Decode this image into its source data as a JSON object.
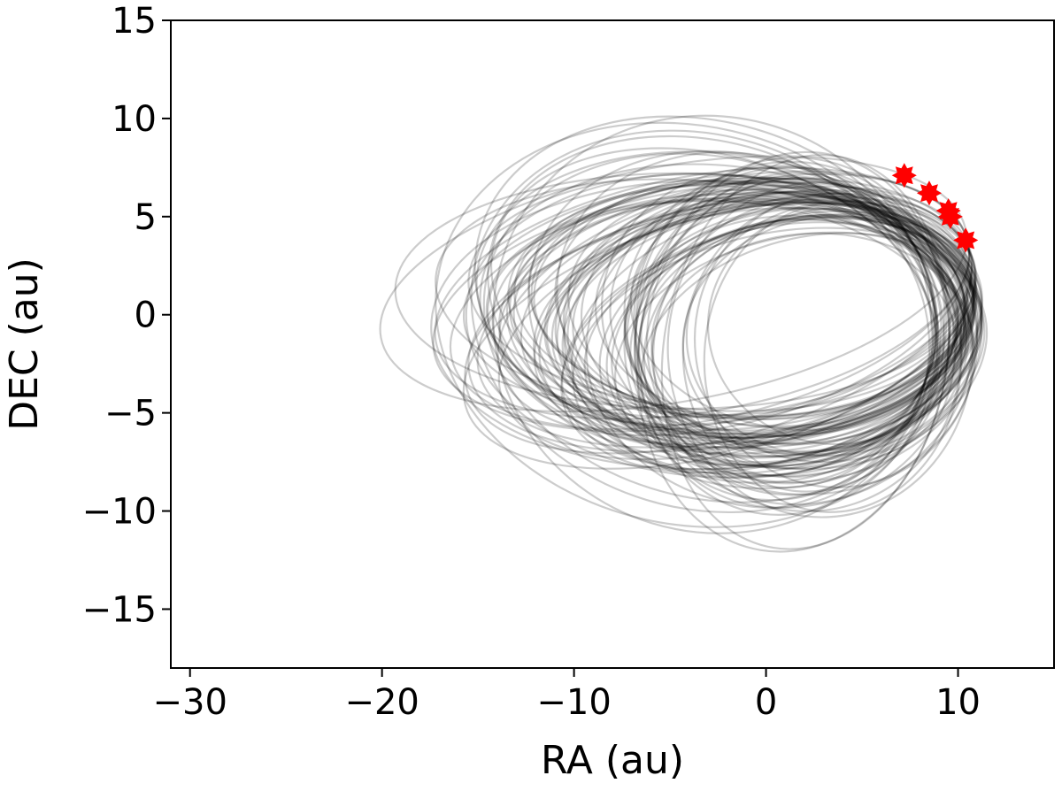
{
  "chart_data": {
    "type": "line",
    "title": "",
    "xlabel": "RA (au)",
    "ylabel": "DEC (au)",
    "xlim": [
      -31,
      15
    ],
    "ylim": [
      -18,
      15
    ],
    "xticks": [
      -30,
      -20,
      -10,
      0,
      10
    ],
    "xtick_labels": [
      "−30",
      "−20",
      "−10",
      "0",
      "10"
    ],
    "yticks": [
      15,
      10,
      5,
      0,
      -5,
      -10,
      -15
    ],
    "ytick_labels": [
      "15",
      "10",
      "5",
      "0",
      "−5",
      "−10",
      "−15"
    ],
    "grid": false,
    "orbit_color": "#000000",
    "orbit_alpha": 0.2,
    "orbit_count": 100,
    "anchor_point": [
      10.3,
      3.8
    ],
    "orbit_center_range": {
      "x": [
        -5,
        4
      ],
      "y": [
        -3.5,
        1.5
      ]
    },
    "observations": {
      "color": "#ff0000",
      "points": [
        {
          "x": 7.2,
          "y": 7.1
        },
        {
          "x": 8.5,
          "y": 6.2
        },
        {
          "x": 9.5,
          "y": 5.3
        },
        {
          "x": 9.6,
          "y": 5.0
        },
        {
          "x": 10.4,
          "y": 3.8
        }
      ]
    }
  }
}
